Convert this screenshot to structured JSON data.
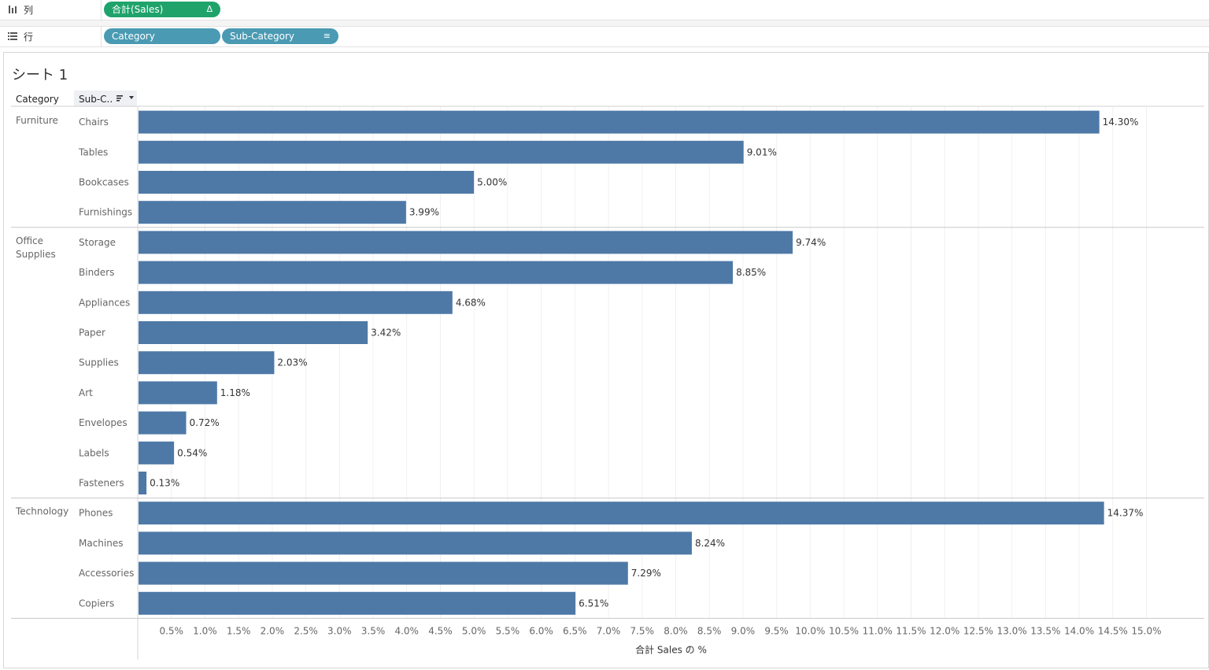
{
  "shelves": {
    "columns": {
      "label": "列",
      "icon": "columns-icon",
      "pill": {
        "label": "合計(Sales)",
        "icon_glyph": "Δ",
        "color": "#1fa36b"
      }
    },
    "rows": {
      "label": "行",
      "icon": "rows-icon",
      "pills": [
        {
          "label": "Category",
          "color": "#4a9ab3"
        },
        {
          "label": "Sub-Category",
          "icon_glyph": "≡",
          "color": "#4a9ab3"
        }
      ]
    }
  },
  "sheet": {
    "title": "シート 1",
    "header_category": "Category",
    "header_subcategory": "Sub-C..",
    "sort_icon": "sort-descending-icon"
  },
  "chart_data": {
    "type": "bar",
    "orientation": "horizontal",
    "xlabel": "合計 Sales の %",
    "xlim": [
      0,
      15.65
    ],
    "bar_color": "#4e79a7",
    "ticks": [
      "0.5%",
      "1.0%",
      "1.5%",
      "2.0%",
      "2.5%",
      "3.0%",
      "3.5%",
      "4.0%",
      "4.5%",
      "5.0%",
      "5.5%",
      "6.0%",
      "6.5%",
      "7.0%",
      "7.5%",
      "8.0%",
      "8.5%",
      "9.0%",
      "9.5%",
      "10.0%",
      "10.5%",
      "11.0%",
      "11.5%",
      "12.0%",
      "12.5%",
      "13.0%",
      "13.5%",
      "14.0%",
      "14.5%",
      "15.0%"
    ],
    "tick_values": [
      0.5,
      1.0,
      1.5,
      2.0,
      2.5,
      3.0,
      3.5,
      4.0,
      4.5,
      5.0,
      5.5,
      6.0,
      6.5,
      7.0,
      7.5,
      8.0,
      8.5,
      9.0,
      9.5,
      10.0,
      10.5,
      11.0,
      11.5,
      12.0,
      12.5,
      13.0,
      13.5,
      14.0,
      14.5,
      15.0
    ],
    "groups": [
      {
        "category": "Furniture",
        "items": [
          {
            "sub": "Chairs",
            "value": 14.3,
            "label": "14.30%"
          },
          {
            "sub": "Tables",
            "value": 9.01,
            "label": "9.01%"
          },
          {
            "sub": "Bookcases",
            "value": 5.0,
            "label": "5.00%"
          },
          {
            "sub": "Furnishings",
            "value": 3.99,
            "label": "3.99%"
          }
        ]
      },
      {
        "category": "Office Supplies",
        "items": [
          {
            "sub": "Storage",
            "value": 9.74,
            "label": "9.74%"
          },
          {
            "sub": "Binders",
            "value": 8.85,
            "label": "8.85%"
          },
          {
            "sub": "Appliances",
            "value": 4.68,
            "label": "4.68%"
          },
          {
            "sub": "Paper",
            "value": 3.42,
            "label": "3.42%"
          },
          {
            "sub": "Supplies",
            "value": 2.03,
            "label": "2.03%"
          },
          {
            "sub": "Art",
            "value": 1.18,
            "label": "1.18%"
          },
          {
            "sub": "Envelopes",
            "value": 0.72,
            "label": "0.72%"
          },
          {
            "sub": "Labels",
            "value": 0.54,
            "label": "0.54%"
          },
          {
            "sub": "Fasteners",
            "value": 0.13,
            "label": "0.13%"
          }
        ]
      },
      {
        "category": "Technology",
        "items": [
          {
            "sub": "Phones",
            "value": 14.37,
            "label": "14.37%"
          },
          {
            "sub": "Machines",
            "value": 8.24,
            "label": "8.24%"
          },
          {
            "sub": "Accessories",
            "value": 7.29,
            "label": "7.29%"
          },
          {
            "sub": "Copiers",
            "value": 6.51,
            "label": "6.51%"
          }
        ]
      }
    ]
  }
}
